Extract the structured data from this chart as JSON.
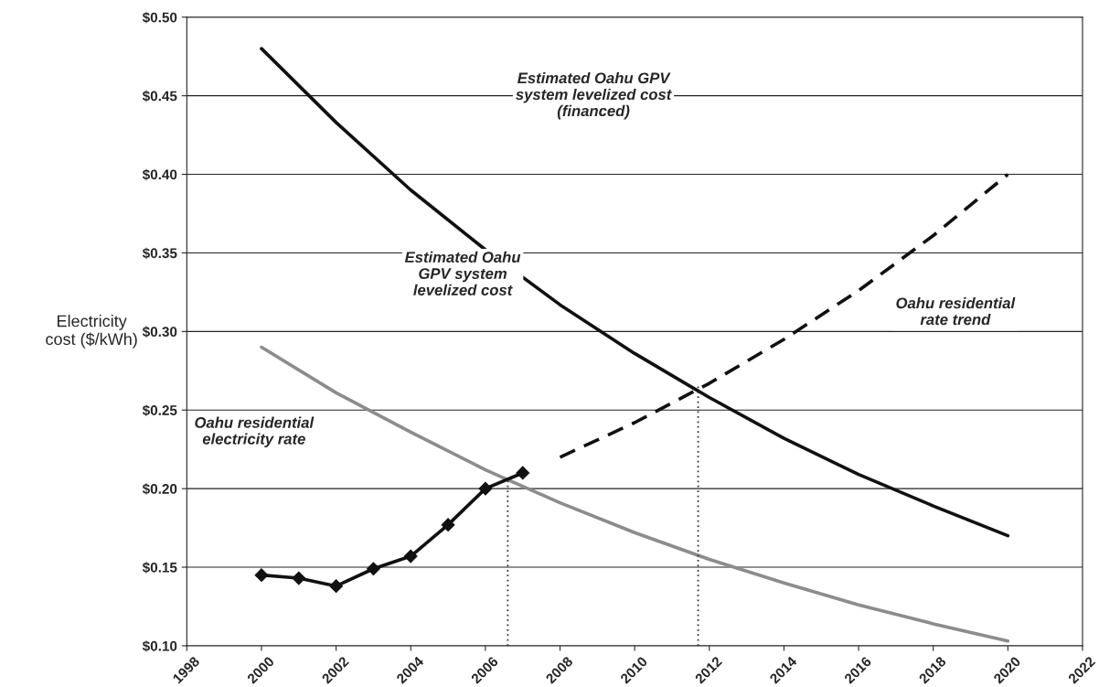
{
  "chart_data": {
    "type": "line",
    "ylabel": "Electricity\ncost ($/kWh)",
    "xlim": [
      1998,
      2022
    ],
    "xticks": [
      1998,
      2000,
      2002,
      2004,
      2006,
      2008,
      2010,
      2012,
      2014,
      2016,
      2018,
      2020,
      2022
    ],
    "ylim": [
      0.1,
      0.5
    ],
    "yticks": [
      {
        "value": 0.1,
        "label": "$0.10"
      },
      {
        "value": 0.15,
        "label": "$0.15"
      },
      {
        "value": 0.2,
        "label": "$0.20"
      },
      {
        "value": 0.25,
        "label": "$0.25"
      },
      {
        "value": 0.3,
        "label": "$0.30"
      },
      {
        "value": 0.35,
        "label": "$0.35"
      },
      {
        "value": 0.4,
        "label": "$0.40"
      },
      {
        "value": 0.45,
        "label": "$0.45"
      },
      {
        "value": 0.5,
        "label": "$0.50"
      }
    ],
    "grid": "y",
    "series": [
      {
        "color": "#111111",
        "line_style": "solid",
        "x": [
          2000,
          2002,
          2004,
          2006,
          2008,
          2010,
          2012,
          2014,
          2016,
          2018,
          2020
        ],
        "values": [
          0.48,
          0.433,
          0.39,
          0.352,
          0.317,
          0.286,
          0.258,
          0.232,
          0.209,
          0.189,
          0.17
        ]
      },
      {
        "color": "#8c8c8c",
        "line_style": "solid",
        "x": [
          2000,
          2002,
          2004,
          2006,
          2008,
          2010,
          2012,
          2014,
          2016,
          2018,
          2020
        ],
        "values": [
          0.29,
          0.261,
          0.236,
          0.212,
          0.191,
          0.172,
          0.155,
          0.14,
          0.126,
          0.114,
          0.103
        ]
      },
      {
        "color": "#111111",
        "line_style": "solid",
        "marker": "diamond",
        "x": [
          2000,
          2001,
          2002,
          2003,
          2004,
          2005,
          2006,
          2007
        ],
        "values": [
          0.145,
          0.143,
          0.138,
          0.149,
          0.157,
          0.177,
          0.2,
          0.21
        ]
      },
      {
        "color": "#111111",
        "line_style": "dashed",
        "x": [
          2008,
          2010,
          2012,
          2014,
          2016,
          2018,
          2020
        ],
        "values": [
          0.22,
          0.242,
          0.267,
          0.295,
          0.326,
          0.361,
          0.4
        ]
      },
      {
        "color": "#333333",
        "line_style": "dotted",
        "x": [
          2006.6,
          2006.6
        ],
        "values": [
          0.1,
          0.206
        ]
      },
      {
        "color": "#333333",
        "line_style": "dotted",
        "x": [
          2011.7,
          2011.7
        ],
        "values": [
          0.1,
          0.265
        ]
      }
    ],
    "annotations": [
      "Estimated Oahu GPV\nsystem levelized cost\n(financed)",
      "Oahu residential\nrate trend",
      "Estimated Oahu\nGPV system\nlevelized cost",
      "Oahu residential\nelectricity rate"
    ]
  }
}
